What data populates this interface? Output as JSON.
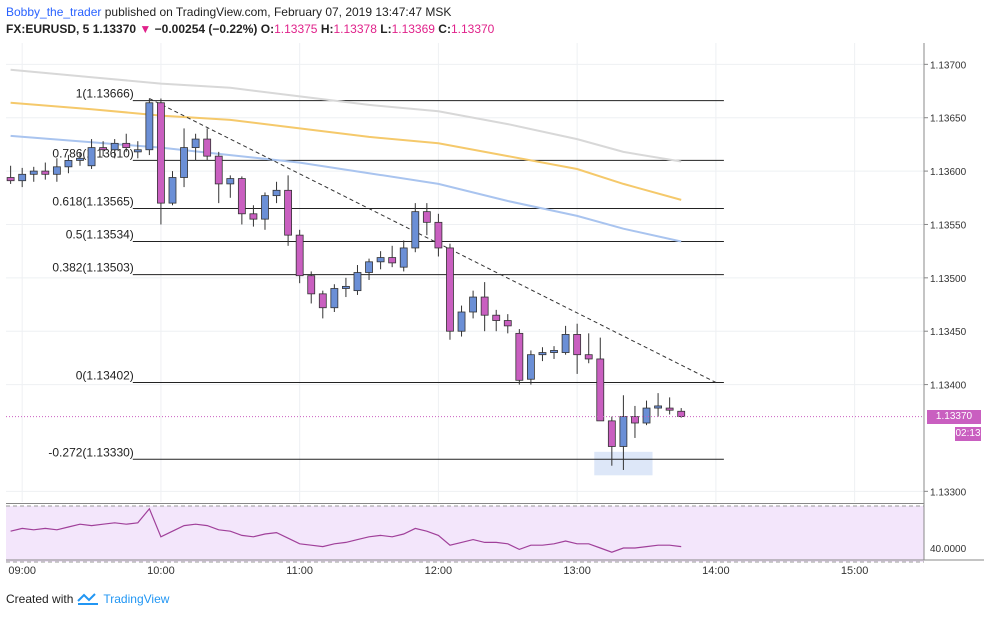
{
  "header": {
    "author": "Bobby_the_trader",
    "published": "published on TradingView.com, February 07, 2019 13:47:47 MSK",
    "symbol": "FX:EURUSD, 5",
    "last": "1.13370",
    "change_arrow": "▼",
    "change": "−0.00254 (−0.22%)",
    "o_label": "O:",
    "o": "1.13375",
    "h_label": "H:",
    "h": "1.13378",
    "l_label": "L:",
    "l": "1.13369",
    "c_label": "C:",
    "c": "1.13370"
  },
  "footer": {
    "created_with": "Created with",
    "brand": "TradingView",
    "logo_icon": "tradingview-logo-icon"
  },
  "price_tags": {
    "last_price": "1.13370",
    "countdown": "02:13"
  },
  "colors": {
    "bull": "#6b8fd6",
    "bear": "#c95fc0",
    "ma_gray": "#d8d8d8",
    "ma_orange": "#f5c96b",
    "ma_blue": "#a9c4ef",
    "rsi_line": "#a0409a",
    "rsi_fill": "#f3e6fb",
    "last_price_tag": "#c95fc0",
    "countdown_tag": "#c95fc0"
  },
  "chart_data": {
    "type": "candlestick",
    "title": "FX:EURUSD, 5",
    "ylim": [
      1.1329,
      1.1372
    ],
    "x_time_range": [
      "08:53",
      "15:30"
    ],
    "y_ticks": [
      "1.13700",
      "1.13650",
      "1.13600",
      "1.13550",
      "1.13500",
      "1.13450",
      "1.13400",
      "1.13300"
    ],
    "x_ticks": [
      "09:00",
      "10:00",
      "11:00",
      "12:00",
      "13:00",
      "14:00",
      "15:00"
    ],
    "candles": [
      {
        "t": "08:55",
        "o": 1.13594,
        "h": 1.13605,
        "l": 1.13588,
        "c": 1.13591
      },
      {
        "t": "09:00",
        "o": 1.13591,
        "h": 1.13603,
        "l": 1.13585,
        "c": 1.13597
      },
      {
        "t": "09:05",
        "o": 1.13597,
        "h": 1.13604,
        "l": 1.1359,
        "c": 1.136
      },
      {
        "t": "09:10",
        "o": 1.136,
        "h": 1.13608,
        "l": 1.13592,
        "c": 1.13597
      },
      {
        "t": "09:15",
        "o": 1.13597,
        "h": 1.13612,
        "l": 1.1359,
        "c": 1.13604
      },
      {
        "t": "09:20",
        "o": 1.13604,
        "h": 1.13615,
        "l": 1.13598,
        "c": 1.1361
      },
      {
        "t": "09:25",
        "o": 1.1361,
        "h": 1.13618,
        "l": 1.13605,
        "c": 1.13612
      },
      {
        "t": "09:30",
        "o": 1.13605,
        "h": 1.1363,
        "l": 1.13602,
        "c": 1.13622
      },
      {
        "t": "09:35",
        "o": 1.13622,
        "h": 1.13628,
        "l": 1.13614,
        "c": 1.1362
      },
      {
        "t": "09:40",
        "o": 1.1362,
        "h": 1.1363,
        "l": 1.13612,
        "c": 1.13626
      },
      {
        "t": "09:45",
        "o": 1.13626,
        "h": 1.13635,
        "l": 1.13618,
        "c": 1.13622
      },
      {
        "t": "09:50",
        "o": 1.13618,
        "h": 1.13628,
        "l": 1.13612,
        "c": 1.1362
      },
      {
        "t": "09:55",
        "o": 1.1362,
        "h": 1.13668,
        "l": 1.13615,
        "c": 1.13664
      },
      {
        "t": "10:00",
        "o": 1.13664,
        "h": 1.13668,
        "l": 1.1355,
        "c": 1.1357
      },
      {
        "t": "10:05",
        "o": 1.1357,
        "h": 1.136,
        "l": 1.13568,
        "c": 1.13594
      },
      {
        "t": "10:10",
        "o": 1.13594,
        "h": 1.1364,
        "l": 1.13585,
        "c": 1.13622
      },
      {
        "t": "10:15",
        "o": 1.13622,
        "h": 1.13635,
        "l": 1.1361,
        "c": 1.1363
      },
      {
        "t": "10:20",
        "o": 1.1363,
        "h": 1.1364,
        "l": 1.1361,
        "c": 1.13614
      },
      {
        "t": "10:25",
        "o": 1.13614,
        "h": 1.13618,
        "l": 1.1357,
        "c": 1.13588
      },
      {
        "t": "10:30",
        "o": 1.13588,
        "h": 1.13596,
        "l": 1.13575,
        "c": 1.13593
      },
      {
        "t": "10:35",
        "o": 1.13593,
        "h": 1.13595,
        "l": 1.1355,
        "c": 1.1356
      },
      {
        "t": "10:40",
        "o": 1.1356,
        "h": 1.13568,
        "l": 1.13548,
        "c": 1.13555
      },
      {
        "t": "10:45",
        "o": 1.13555,
        "h": 1.1358,
        "l": 1.13545,
        "c": 1.13577
      },
      {
        "t": "10:50",
        "o": 1.13577,
        "h": 1.1359,
        "l": 1.1357,
        "c": 1.13582
      },
      {
        "t": "10:55",
        "o": 1.13582,
        "h": 1.13596,
        "l": 1.1353,
        "c": 1.1354
      },
      {
        "t": "11:00",
        "o": 1.1354,
        "h": 1.13545,
        "l": 1.13495,
        "c": 1.13502
      },
      {
        "t": "11:05",
        "o": 1.13502,
        "h": 1.13506,
        "l": 1.13476,
        "c": 1.13485
      },
      {
        "t": "11:10",
        "o": 1.13485,
        "h": 1.13488,
        "l": 1.13462,
        "c": 1.13472
      },
      {
        "t": "11:15",
        "o": 1.13472,
        "h": 1.13494,
        "l": 1.13468,
        "c": 1.1349
      },
      {
        "t": "11:20",
        "o": 1.1349,
        "h": 1.135,
        "l": 1.13482,
        "c": 1.13492
      },
      {
        "t": "11:25",
        "o": 1.13488,
        "h": 1.13512,
        "l": 1.13484,
        "c": 1.13505
      },
      {
        "t": "11:30",
        "o": 1.13505,
        "h": 1.13518,
        "l": 1.13498,
        "c": 1.13515
      },
      {
        "t": "11:35",
        "o": 1.13515,
        "h": 1.13525,
        "l": 1.13508,
        "c": 1.13519
      },
      {
        "t": "11:40",
        "o": 1.13519,
        "h": 1.1353,
        "l": 1.1351,
        "c": 1.13514
      },
      {
        "t": "11:45",
        "o": 1.1351,
        "h": 1.13535,
        "l": 1.13506,
        "c": 1.13528
      },
      {
        "t": "11:50",
        "o": 1.13528,
        "h": 1.1357,
        "l": 1.13524,
        "c": 1.13562
      },
      {
        "t": "11:55",
        "o": 1.13562,
        "h": 1.1357,
        "l": 1.1354,
        "c": 1.13552
      },
      {
        "t": "12:00",
        "o": 1.13552,
        "h": 1.1356,
        "l": 1.1352,
        "c": 1.13528
      },
      {
        "t": "12:05",
        "o": 1.13528,
        "h": 1.13532,
        "l": 1.13442,
        "c": 1.1345
      },
      {
        "t": "12:10",
        "o": 1.1345,
        "h": 1.13474,
        "l": 1.13445,
        "c": 1.13468
      },
      {
        "t": "12:15",
        "o": 1.13468,
        "h": 1.13488,
        "l": 1.13462,
        "c": 1.13482
      },
      {
        "t": "12:20",
        "o": 1.13482,
        "h": 1.13496,
        "l": 1.1345,
        "c": 1.13465
      },
      {
        "t": "12:25",
        "o": 1.13465,
        "h": 1.1347,
        "l": 1.1345,
        "c": 1.1346
      },
      {
        "t": "12:30",
        "o": 1.1346,
        "h": 1.13466,
        "l": 1.13448,
        "c": 1.13455
      },
      {
        "t": "12:35",
        "o": 1.13448,
        "h": 1.13452,
        "l": 1.134,
        "c": 1.13404
      },
      {
        "t": "12:40",
        "o": 1.13405,
        "h": 1.13432,
        "l": 1.134,
        "c": 1.13428
      },
      {
        "t": "12:45",
        "o": 1.13428,
        "h": 1.13435,
        "l": 1.13422,
        "c": 1.1343
      },
      {
        "t": "12:50",
        "o": 1.1343,
        "h": 1.13436,
        "l": 1.13424,
        "c": 1.13432
      },
      {
        "t": "12:55",
        "o": 1.1343,
        "h": 1.13455,
        "l": 1.13428,
        "c": 1.13447
      },
      {
        "t": "13:00",
        "o": 1.13447,
        "h": 1.13457,
        "l": 1.1341,
        "c": 1.13428
      },
      {
        "t": "13:05",
        "o": 1.13428,
        "h": 1.13448,
        "l": 1.1342,
        "c": 1.13424
      },
      {
        "t": "13:10",
        "o": 1.13424,
        "h": 1.13444,
        "l": 1.13366,
        "c": 1.13366
      },
      {
        "t": "13:15",
        "o": 1.13366,
        "h": 1.1337,
        "l": 1.13324,
        "c": 1.13342
      },
      {
        "t": "13:20",
        "o": 1.13342,
        "h": 1.1339,
        "l": 1.1332,
        "c": 1.1337
      },
      {
        "t": "13:25",
        "o": 1.1337,
        "h": 1.1338,
        "l": 1.1335,
        "c": 1.13364
      },
      {
        "t": "13:30",
        "o": 1.13364,
        "h": 1.13385,
        "l": 1.13362,
        "c": 1.13378
      },
      {
        "t": "13:35",
        "o": 1.13378,
        "h": 1.13392,
        "l": 1.1337,
        "c": 1.1338
      },
      {
        "t": "13:40",
        "o": 1.13378,
        "h": 1.13388,
        "l": 1.13372,
        "c": 1.13376
      },
      {
        "t": "13:45",
        "o": 1.13375,
        "h": 1.13378,
        "l": 1.13369,
        "c": 1.1337
      }
    ],
    "moving_averages": [
      {
        "name": "MA gray",
        "color": "#d8d8d8",
        "points": [
          [
            "08:55",
            1.13695
          ],
          [
            "09:30",
            1.13688
          ],
          [
            "10:00",
            1.13682
          ],
          [
            "10:30",
            1.13678
          ],
          [
            "11:00",
            1.1367
          ],
          [
            "11:30",
            1.13662
          ],
          [
            "12:00",
            1.13656
          ],
          [
            "12:30",
            1.13644
          ],
          [
            "13:00",
            1.1363
          ],
          [
            "13:20",
            1.13618
          ],
          [
            "13:45",
            1.13609
          ]
        ]
      },
      {
        "name": "MA orange",
        "color": "#f5c96b",
        "points": [
          [
            "08:55",
            1.13664
          ],
          [
            "09:30",
            1.13658
          ],
          [
            "10:00",
            1.13652
          ],
          [
            "10:30",
            1.13648
          ],
          [
            "11:00",
            1.1364
          ],
          [
            "11:30",
            1.13632
          ],
          [
            "12:00",
            1.13626
          ],
          [
            "12:30",
            1.13614
          ],
          [
            "13:00",
            1.13602
          ],
          [
            "13:20",
            1.13588
          ],
          [
            "13:45",
            1.13573
          ]
        ]
      },
      {
        "name": "MA blue",
        "color": "#a9c4ef",
        "points": [
          [
            "08:55",
            1.13633
          ],
          [
            "09:30",
            1.13627
          ],
          [
            "10:00",
            1.13622
          ],
          [
            "10:30",
            1.13615
          ],
          [
            "11:00",
            1.13608
          ],
          [
            "11:30",
            1.13598
          ],
          [
            "12:00",
            1.13588
          ],
          [
            "12:30",
            1.13572
          ],
          [
            "13:00",
            1.13558
          ],
          [
            "13:20",
            1.13546
          ],
          [
            "13:45",
            1.13534
          ]
        ]
      }
    ],
    "fibonacci": [
      {
        "label": "1(1.13666)",
        "price": 1.13666
      },
      {
        "label": "0.786(1.13610)",
        "price": 1.1361
      },
      {
        "label": "0.618(1.13565)",
        "price": 1.13565
      },
      {
        "label": "0.5(1.13534)",
        "price": 1.13534
      },
      {
        "label": "0.382(1.13503)",
        "price": 1.13503
      },
      {
        "label": "0(1.13402)",
        "price": 1.13402
      },
      {
        "label": "-0.272(1.13330)",
        "price": 1.1333
      }
    ],
    "fib_time_range": [
      "09:50",
      "14:00"
    ],
    "trendline": {
      "start": [
        "09:55",
        1.13668
      ],
      "end": [
        "14:00",
        1.13402
      ]
    },
    "highlight_box": {
      "t_start": "13:10",
      "t_end": "13:30",
      "p_low": 1.13315,
      "p_high": 1.13337
    },
    "last_price": 1.1337,
    "rsi": {
      "ylim": [
        35,
        70
      ],
      "levels": [
        30,
        70
      ],
      "level_label": "40.0000",
      "values": [
        [
          "08:55",
          52
        ],
        [
          "09:00",
          54
        ],
        [
          "09:05",
          53
        ],
        [
          "09:10",
          54
        ],
        [
          "09:15",
          53
        ],
        [
          "09:20",
          55
        ],
        [
          "09:25",
          57
        ],
        [
          "09:30",
          56
        ],
        [
          "09:35",
          57
        ],
        [
          "09:40",
          58
        ],
        [
          "09:45",
          57
        ],
        [
          "09:50",
          58
        ],
        [
          "09:55",
          68
        ],
        [
          "10:00",
          48
        ],
        [
          "10:05",
          52
        ],
        [
          "10:10",
          56
        ],
        [
          "10:15",
          57
        ],
        [
          "10:20",
          56
        ],
        [
          "10:25",
          53
        ],
        [
          "10:30",
          52
        ],
        [
          "10:35",
          49
        ],
        [
          "10:40",
          48
        ],
        [
          "10:45",
          50
        ],
        [
          "10:50",
          51
        ],
        [
          "10:55",
          47
        ],
        [
          "11:00",
          43
        ],
        [
          "11:05",
          42
        ],
        [
          "11:10",
          41
        ],
        [
          "11:15",
          43
        ],
        [
          "11:20",
          44
        ],
        [
          "11:25",
          46
        ],
        [
          "11:30",
          48
        ],
        [
          "11:35",
          49
        ],
        [
          "11:40",
          48
        ],
        [
          "11:45",
          50
        ],
        [
          "11:50",
          54
        ],
        [
          "11:55",
          52
        ],
        [
          "12:00",
          49
        ],
        [
          "12:05",
          42
        ],
        [
          "12:10",
          44
        ],
        [
          "12:15",
          46
        ],
        [
          "12:20",
          44
        ],
        [
          "12:25",
          44
        ],
        [
          "12:30",
          43
        ],
        [
          "12:35",
          39
        ],
        [
          "12:40",
          42
        ],
        [
          "12:45",
          42
        ],
        [
          "12:50",
          43
        ],
        [
          "12:55",
          45
        ],
        [
          "13:00",
          43
        ],
        [
          "13:05",
          43
        ],
        [
          "13:10",
          40
        ],
        [
          "13:15",
          37
        ],
        [
          "13:20",
          40
        ],
        [
          "13:25",
          40
        ],
        [
          "13:30",
          41
        ],
        [
          "13:35",
          42
        ],
        [
          "13:40",
          42
        ],
        [
          "13:45",
          41
        ]
      ]
    }
  }
}
